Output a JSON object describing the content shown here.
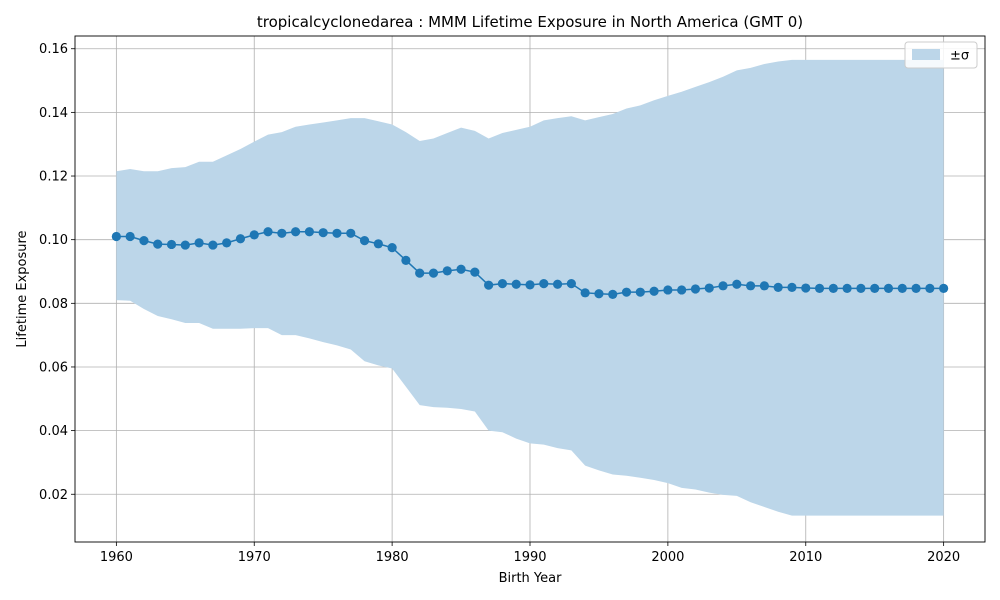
{
  "chart_data": {
    "type": "line",
    "title": "tropicalcyclonedarea : MMM Lifetime Exposure in North America (GMT 0)",
    "xlabel": "Birth Year",
    "ylabel": "Lifetime Exposure",
    "xlim": [
      1957,
      2023
    ],
    "ylim": [
      0.005,
      0.164
    ],
    "xticks": [
      1960,
      1970,
      1980,
      1990,
      2000,
      2010,
      2020
    ],
    "yticks": [
      0.02,
      0.04,
      0.06,
      0.08,
      0.1,
      0.12,
      0.14,
      0.16
    ],
    "grid": true,
    "legend": {
      "position": "top-right",
      "entries": [
        {
          "label": "±σ",
          "kind": "band"
        }
      ]
    },
    "colors": {
      "line": "#1f77b4",
      "band": "#bcd6e9",
      "grid": "#b0b0b0"
    },
    "x": [
      1960,
      1961,
      1962,
      1963,
      1964,
      1965,
      1966,
      1967,
      1968,
      1969,
      1970,
      1971,
      1972,
      1973,
      1974,
      1975,
      1976,
      1977,
      1978,
      1979,
      1980,
      1981,
      1982,
      1983,
      1984,
      1985,
      1986,
      1987,
      1988,
      1989,
      1990,
      1991,
      1992,
      1993,
      1994,
      1995,
      1996,
      1997,
      1998,
      1999,
      2000,
      2001,
      2002,
      2003,
      2004,
      2005,
      2006,
      2007,
      2008,
      2009,
      2010,
      2011,
      2012,
      2013,
      2014,
      2015,
      2016,
      2017,
      2018,
      2019,
      2020
    ],
    "series": [
      {
        "name": "mean",
        "values": [
          0.101,
          0.101,
          0.0997,
          0.0986,
          0.0985,
          0.0983,
          0.099,
          0.0983,
          0.099,
          0.1003,
          0.1015,
          0.1025,
          0.102,
          0.1025,
          0.1025,
          0.1022,
          0.102,
          0.102,
          0.0997,
          0.0987,
          0.0975,
          0.0935,
          0.0895,
          0.0895,
          0.0902,
          0.0907,
          0.0898,
          0.0857,
          0.0862,
          0.086,
          0.0858,
          0.0862,
          0.086,
          0.0862,
          0.0833,
          0.083,
          0.0828,
          0.0835,
          0.0835,
          0.0838,
          0.0842,
          0.0842,
          0.0845,
          0.0848,
          0.0855,
          0.086,
          0.0855,
          0.0855,
          0.085,
          0.085,
          0.0848,
          0.0847,
          0.0847,
          0.0847,
          0.0847,
          0.0847,
          0.0847,
          0.0847,
          0.0847,
          0.0847,
          0.0847
        ]
      }
    ],
    "band": {
      "label": "±σ",
      "upper": [
        0.1215,
        0.1222,
        0.1215,
        0.1215,
        0.1225,
        0.1228,
        0.1245,
        0.1245,
        0.1265,
        0.1285,
        0.1308,
        0.133,
        0.1338,
        0.1355,
        0.1362,
        0.1368,
        0.1375,
        0.1382,
        0.1382,
        0.1372,
        0.1362,
        0.1338,
        0.131,
        0.1318,
        0.1335,
        0.1352,
        0.1342,
        0.1318,
        0.1335,
        0.1345,
        0.1355,
        0.1375,
        0.1382,
        0.1388,
        0.1375,
        0.1385,
        0.1395,
        0.1412,
        0.1422,
        0.1438,
        0.1452,
        0.1465,
        0.148,
        0.1495,
        0.1512,
        0.1532,
        0.154,
        0.1552,
        0.156,
        0.1565,
        0.1565,
        0.1565,
        0.1565,
        0.1565,
        0.1565,
        0.1565,
        0.1565,
        0.1565,
        0.1565,
        0.1565,
        0.1565
      ],
      "lower": [
        0.081,
        0.0808,
        0.0782,
        0.076,
        0.075,
        0.0738,
        0.0738,
        0.072,
        0.072,
        0.072,
        0.0722,
        0.0722,
        0.07,
        0.07,
        0.069,
        0.0678,
        0.0668,
        0.0655,
        0.0618,
        0.0605,
        0.0595,
        0.0538,
        0.048,
        0.0474,
        0.0472,
        0.0468,
        0.046,
        0.04,
        0.0395,
        0.0375,
        0.036,
        0.0356,
        0.0345,
        0.0338,
        0.029,
        0.0275,
        0.0262,
        0.0258,
        0.0252,
        0.0245,
        0.0235,
        0.022,
        0.0215,
        0.0205,
        0.0198,
        0.0195,
        0.0175,
        0.016,
        0.0145,
        0.0133,
        0.0133,
        0.0133,
        0.0133,
        0.0133,
        0.0133,
        0.0133,
        0.0133,
        0.0133,
        0.0133,
        0.0133,
        0.0133
      ]
    }
  }
}
